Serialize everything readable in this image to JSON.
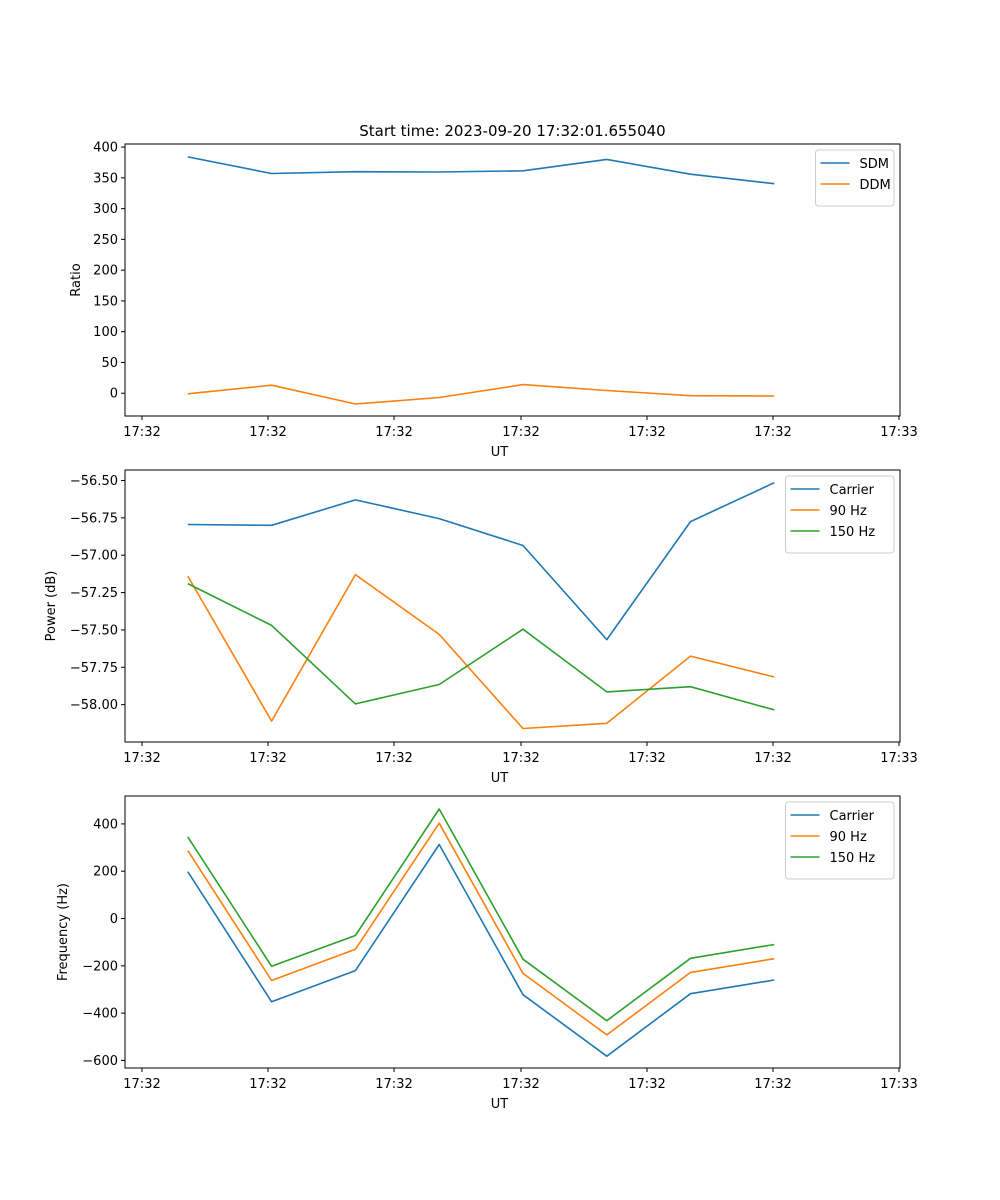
{
  "figure_title": "Start time: 2023-09-20 17:32:01.655040",
  "chart_data": [
    {
      "type": "line",
      "title": "Start time: 2023-09-20 17:32:01.655040",
      "xlabel": "UT",
      "ylabel": "Ratio",
      "x_tick_labels": [
        "17:32",
        "17:32",
        "17:32",
        "17:32",
        "17:32",
        "17:32",
        "17:33"
      ],
      "x_index_range": [
        -0.75,
        8.5
      ],
      "x": [
        0,
        1,
        2,
        3,
        4,
        5,
        6,
        7
      ],
      "ylim": [
        -37,
        405
      ],
      "y_ticks": [
        0,
        50,
        100,
        150,
        200,
        250,
        300,
        350,
        400
      ],
      "y_tick_labels": [
        "0",
        "50",
        "100",
        "150",
        "200",
        "250",
        "300",
        "350",
        "400"
      ],
      "legend_position": "top-right",
      "series": [
        {
          "name": "SDM",
          "color": "#1f77b4",
          "values": [
            384,
            357,
            360,
            359.5,
            361.5,
            380,
            356,
            340.5
          ]
        },
        {
          "name": "DDM",
          "color": "#ff7f0e",
          "values": [
            -1,
            13,
            -17.5,
            -7,
            14,
            4.5,
            -4,
            -4.5
          ]
        }
      ]
    },
    {
      "type": "line",
      "title": "",
      "xlabel": "UT",
      "ylabel": "Power (dB)",
      "x_tick_labels": [
        "17:32",
        "17:32",
        "17:32",
        "17:32",
        "17:32",
        "17:32",
        "17:33"
      ],
      "x_index_range": [
        -0.75,
        8.5
      ],
      "x": [
        0,
        1,
        2,
        3,
        4,
        5,
        6,
        7
      ],
      "ylim": [
        -58.25,
        -56.43
      ],
      "y_ticks": [
        -58.0,
        -57.75,
        -57.5,
        -57.25,
        -57.0,
        -56.75,
        -56.5
      ],
      "y_tick_labels": [
        "−58.00",
        "−57.75",
        "−57.50",
        "−57.25",
        "−57.00",
        "−56.75",
        "−56.50"
      ],
      "legend_position": "top-right",
      "series": [
        {
          "name": "Carrier",
          "color": "#1f77b4",
          "values": [
            -56.795,
            -56.8,
            -56.63,
            -56.755,
            -56.935,
            -57.565,
            -56.775,
            -56.515
          ]
        },
        {
          "name": "90 Hz",
          "color": "#ff7f0e",
          "values": [
            -57.14,
            -58.11,
            -57.13,
            -57.53,
            -58.16,
            -58.125,
            -57.675,
            -57.815
          ]
        },
        {
          "name": "150 Hz",
          "color": "#2ca02c",
          "values": [
            -57.19,
            -57.47,
            -57.995,
            -57.865,
            -57.495,
            -57.915,
            -57.88,
            -58.035
          ]
        }
      ]
    },
    {
      "type": "line",
      "title": "",
      "xlabel": "UT",
      "ylabel": "Frequency (Hz)",
      "x_tick_labels": [
        "17:32",
        "17:32",
        "17:32",
        "17:32",
        "17:32",
        "17:32",
        "17:33"
      ],
      "x_index_range": [
        -0.75,
        8.5
      ],
      "x": [
        0,
        1,
        2,
        3,
        4,
        5,
        6,
        7
      ],
      "ylim": [
        -632,
        518
      ],
      "y_ticks": [
        -600,
        -400,
        -200,
        0,
        200,
        400
      ],
      "y_tick_labels": [
        "−600",
        "−400",
        "−200",
        "0",
        "200",
        "400"
      ],
      "legend_position": "top-right",
      "series": [
        {
          "name": "Carrier",
          "color": "#1f77b4",
          "values": [
            198,
            -352,
            -220,
            313,
            -322,
            -582,
            -318,
            -260
          ]
        },
        {
          "name": "90 Hz",
          "color": "#ff7f0e",
          "values": [
            287,
            -262,
            -130,
            403,
            -232,
            -492,
            -228,
            -170
          ]
        },
        {
          "name": "150 Hz",
          "color": "#2ca02c",
          "values": [
            345,
            -202,
            -72,
            463,
            -172,
            -432,
            -168,
            -110
          ]
        }
      ]
    }
  ]
}
